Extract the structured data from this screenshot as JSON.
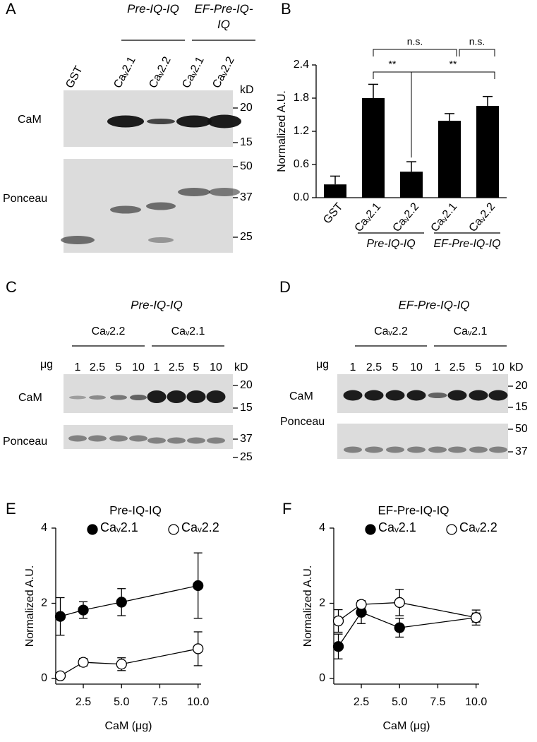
{
  "letters": [
    "A",
    "B",
    "C",
    "D",
    "E",
    "F"
  ],
  "blot_a": {
    "groups": [
      "Pre-IQ-IQ",
      "EF-Pre-IQ-IQ"
    ],
    "lanes": [
      "GST",
      "Caᵥ2.1",
      "Caᵥ2.2",
      "Caᵥ2.1",
      "Caᵥ2.2"
    ],
    "unit": "kD",
    "rows": [
      {
        "label": "CaM",
        "markers": [
          20,
          15
        ]
      },
      {
        "label": "Ponceau",
        "markers": [
          50,
          37,
          25
        ]
      }
    ]
  },
  "blot_c": {
    "title": "Pre-IQ-IQ",
    "groups": [
      "Caᵥ2.2",
      "Caᵥ2.1"
    ],
    "amount_unit": "μg",
    "amounts": [
      1,
      2.5,
      5,
      10,
      1,
      2.5,
      5,
      10
    ],
    "unit": "kD",
    "rows": [
      {
        "label": "CaM",
        "markers": [
          20,
          15
        ]
      },
      {
        "label": "Ponceau",
        "markers": [
          37,
          25
        ]
      }
    ]
  },
  "blot_d": {
    "title": "EF-Pre-IQ-IQ",
    "groups": [
      "Caᵥ2.2",
      "Caᵥ2.1"
    ],
    "amount_unit": "μg",
    "amounts": [
      1,
      2.5,
      5,
      10,
      1,
      2.5,
      5,
      10
    ],
    "unit": "kD",
    "rows": [
      {
        "label": "CaM",
        "markers": [
          20,
          15
        ]
      },
      {
        "label": "Ponceau",
        "markers": [
          50,
          37
        ]
      }
    ]
  },
  "chart_data": [
    {
      "type": "bar",
      "ylabel": "Normalized A.U.",
      "categories": [
        "GST",
        "Caᵥ2.1",
        "Caᵥ2.2",
        "Caᵥ2.1",
        "Caᵥ2.2"
      ],
      "values": [
        0.24,
        1.8,
        0.47,
        1.39,
        1.66
      ],
      "errors": [
        0.15,
        0.25,
        0.18,
        0.13,
        0.17
      ],
      "color": "#000000",
      "groups": [
        "Pre-IQ-IQ",
        "EF-Pre-IQ-IQ"
      ],
      "annotations": [
        "n.s.",
        "n.s.",
        "**",
        "**"
      ],
      "ylim": [
        0,
        2.4
      ],
      "yticks": [
        {
          "value": 0,
          "label": "0.0"
        },
        0.6,
        1.2,
        1.8,
        2.4
      ]
    },
    {
      "type": "line",
      "title": "Pre-IQ-IQ",
      "xlabel": "CaM (μg)",
      "ylabel": "Normalized A.U.",
      "x": [
        1,
        2.5,
        5,
        10
      ],
      "series": [
        {
          "name": "Caᵥ2.1",
          "color": "#000000",
          "marker": "filled",
          "values": [
            1.65,
            1.82,
            2.03,
            2.47
          ],
          "errors": [
            0.5,
            0.22,
            0.36,
            0.87
          ]
        },
        {
          "name": "Caᵥ2.2",
          "color": "#000000",
          "marker": "open",
          "values": [
            0.07,
            0.43,
            0.38,
            0.79
          ],
          "errors": [
            0.03,
            0.1,
            0.17,
            0.45
          ]
        }
      ],
      "xlim": [
        0.7,
        10.2
      ],
      "ylim": [
        -0.15,
        4
      ],
      "xticks": [
        2.5,
        {
          "value": 5,
          "label": "5.0"
        },
        7.5,
        {
          "value": 10,
          "label": "10.0"
        }
      ],
      "yticks": [
        0,
        2,
        4
      ]
    },
    {
      "type": "line",
      "title": "EF-Pre-IQ-IQ",
      "xlabel": "CaM (μg)",
      "ylabel": "Normalized A.U.",
      "x": [
        1,
        2.5,
        5,
        10
      ],
      "series": [
        {
          "name": "Caᵥ2.1",
          "color": "#000000",
          "marker": "filled",
          "values": [
            0.85,
            1.76,
            1.35,
            1.62
          ],
          "errors": [
            0.33,
            0.3,
            0.25,
            0.12
          ]
        },
        {
          "name": "Caᵥ2.2",
          "color": "#000000",
          "marker": "open",
          "values": [
            1.53,
            1.97,
            2.02,
            1.62
          ],
          "errors": [
            0.3,
            0.1,
            0.35,
            0.2
          ]
        }
      ],
      "xlim": [
        0.7,
        10.2
      ],
      "ylim": [
        -0.15,
        4
      ],
      "xticks": [
        2.5,
        {
          "value": 5,
          "label": "5.0"
        },
        7.5,
        {
          "value": 10,
          "label": "10.0"
        }
      ],
      "yticks": [
        0,
        2,
        4
      ]
    }
  ]
}
